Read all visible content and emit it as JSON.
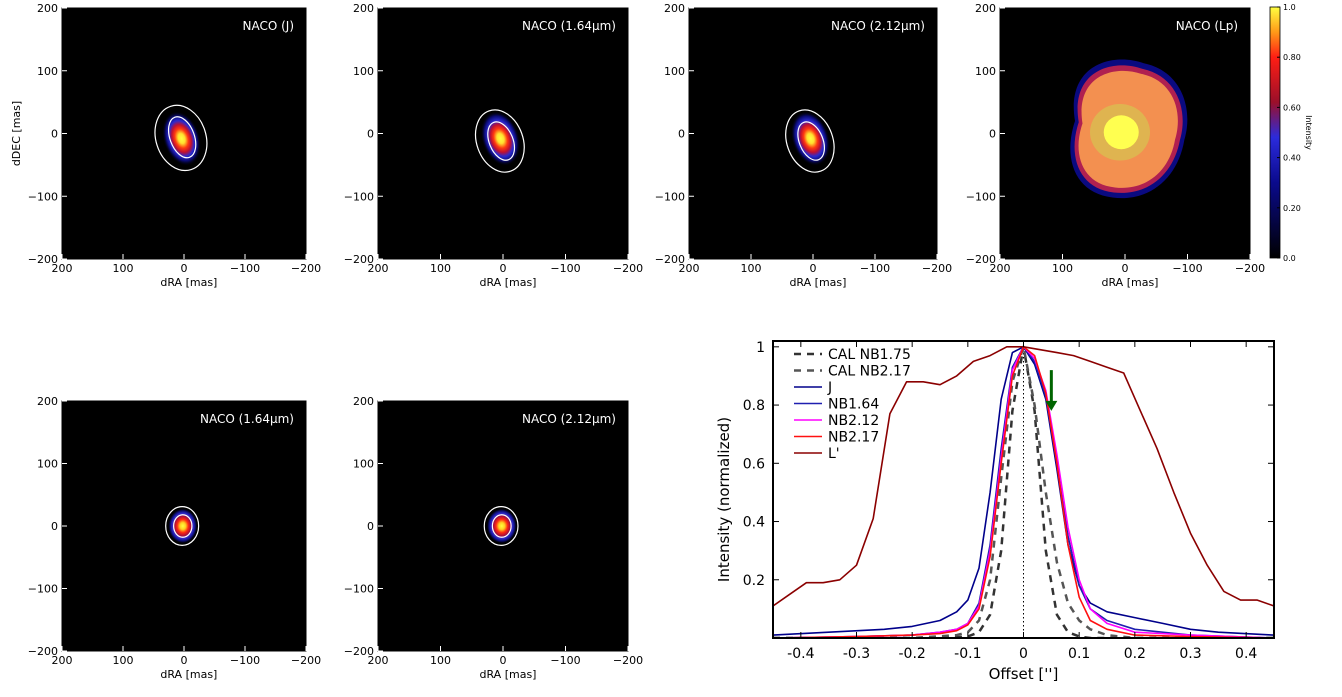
{
  "colorbar": {
    "label": "Intensity",
    "ticks": [
      "1.0",
      "0.80",
      "0.60",
      "0.40",
      "0.20",
      "0.0"
    ],
    "tick_values": [
      1.0,
      0.8,
      0.6,
      0.4,
      0.2,
      0.0
    ]
  },
  "image_panels": [
    {
      "title": "NACO (J)",
      "show_ylabel": true,
      "show_xlabel": true,
      "kind": "core",
      "contours": [
        {
          "rx": 41,
          "ry": 53,
          "cx": 5,
          "cy": -7,
          "rot": -18
        },
        {
          "rx": 20,
          "ry": 34,
          "cx": 3,
          "cy": -6,
          "rot": -20
        }
      ]
    },
    {
      "title": "NACO (1.64μm)",
      "show_ylabel": false,
      "show_xlabel": true,
      "kind": "core",
      "contours": [
        {
          "rx": 37,
          "ry": 51,
          "cx": 5,
          "cy": -12,
          "rot": -20
        },
        {
          "rx": 19,
          "ry": 32,
          "cx": 3,
          "cy": -12,
          "rot": -22
        }
      ]
    },
    {
      "title": "NACO (2.12μm)",
      "show_ylabel": false,
      "show_xlabel": true,
      "kind": "core",
      "contours": [
        {
          "rx": 37,
          "ry": 51,
          "cx": 5,
          "cy": -12,
          "rot": -20
        },
        {
          "rx": 19,
          "ry": 32,
          "cx": 3,
          "cy": -12,
          "rot": -22
        }
      ]
    },
    {
      "title": "NACO (Lp)",
      "show_ylabel": false,
      "show_xlabel": true,
      "kind": "extended",
      "contours": []
    },
    {
      "title": "NACO (1.64μm)",
      "show_ylabel": false,
      "show_xlabel": true,
      "kind": "psf",
      "contours": [
        {
          "rx": 27,
          "ry": 31,
          "cx": 3,
          "cy": 0,
          "rot": 0
        },
        {
          "rx": 15,
          "ry": 18,
          "cx": 2,
          "cy": 0,
          "rot": 0
        }
      ]
    },
    {
      "title": "NACO (2.12μm)",
      "show_ylabel": false,
      "show_xlabel": true,
      "kind": "psf",
      "contours": [
        {
          "rx": 27,
          "ry": 31,
          "cx": 3,
          "cy": 0,
          "rot": 0
        },
        {
          "rx": 15,
          "ry": 18,
          "cx": 2,
          "cy": 0,
          "rot": 0
        }
      ]
    }
  ],
  "image_axes": {
    "xlabel": "dRA [mas]",
    "ylabel": "dDEC [mas]",
    "xticks": [
      200,
      100,
      0,
      -100,
      -200
    ],
    "yticks": [
      200,
      100,
      0,
      -100,
      -200
    ],
    "xtick_labels": [
      "200",
      "100",
      "0",
      "−100",
      "−200"
    ],
    "ytick_labels": [
      "200",
      "100",
      "0",
      "−100",
      "−200"
    ]
  },
  "chart_data": [
    {
      "type": "heatmap",
      "panels": [
        "NACO (J)",
        "NACO (1.64μm)",
        "NACO (2.12μm)",
        "NACO (Lp)",
        "NACO (1.64μm)",
        "NACO (2.12μm)"
      ],
      "xlabel": "dRA [mas]",
      "ylabel": "dDEC [mas]",
      "xlim": [
        200,
        -200
      ],
      "ylim": [
        -200,
        200
      ],
      "colorbar_label": "Intensity",
      "colorbar_range": [
        0,
        1
      ]
    },
    {
      "type": "line",
      "xlabel": "Offset ['']",
      "ylabel": "Intensity (normalized)",
      "xlim": [
        -0.45,
        0.45
      ],
      "ylim": [
        0.0,
        1.02
      ],
      "xticks": [
        -0.4,
        -0.3,
        -0.2,
        -0.1,
        0,
        0.1,
        0.2,
        0.3,
        0.4
      ],
      "xtick_labels": [
        "-0.4",
        "-0.3",
        "-0.2",
        "-0.1",
        "0",
        "0.1",
        "0.2",
        "0.3",
        "0.4"
      ],
      "yticks": [
        0.2,
        0.4,
        0.6,
        0.8,
        1
      ],
      "ytick_labels": [
        "0.2",
        "0.4",
        "0.6",
        "0.8",
        "1"
      ],
      "legend_position": "top-left",
      "vline_x": 0,
      "arrow": {
        "x": 0.05,
        "y_start": 0.92,
        "y_end": 0.78,
        "color": "#006400"
      },
      "series": [
        {
          "name": "CAL NB1.75",
          "color": "#333333",
          "dash": "7,6",
          "width": 2.5,
          "x": [
            -0.45,
            -0.15,
            -0.1,
            -0.08,
            -0.06,
            -0.04,
            -0.02,
            0,
            0.02,
            0.04,
            0.06,
            0.08,
            0.1,
            0.12,
            0.15,
            0.45
          ],
          "y": [
            0.0,
            0.0,
            0.005,
            0.02,
            0.08,
            0.3,
            0.78,
            1.0,
            0.78,
            0.3,
            0.08,
            0.02,
            0.005,
            0.0,
            0.0,
            0.0
          ]
        },
        {
          "name": "CAL NB2.17",
          "color": "#555555",
          "dash": "7,6",
          "width": 2.5,
          "x": [
            -0.45,
            -0.2,
            -0.12,
            -0.1,
            -0.08,
            -0.06,
            -0.04,
            -0.02,
            0,
            0.02,
            0.04,
            0.06,
            0.08,
            0.1,
            0.12,
            0.15,
            0.2,
            0.45
          ],
          "y": [
            0.0,
            0.0,
            0.01,
            0.02,
            0.06,
            0.2,
            0.55,
            0.88,
            1.0,
            0.8,
            0.5,
            0.26,
            0.12,
            0.06,
            0.03,
            0.01,
            0.0,
            0.0
          ]
        },
        {
          "name": "J",
          "color": "#00008b",
          "dash": "",
          "width": 1.6,
          "x": [
            -0.45,
            -0.35,
            -0.25,
            -0.2,
            -0.15,
            -0.12,
            -0.1,
            -0.08,
            -0.06,
            -0.04,
            -0.02,
            0,
            0.02,
            0.04,
            0.06,
            0.08,
            0.1,
            0.12,
            0.15,
            0.2,
            0.25,
            0.3,
            0.35,
            0.45
          ],
          "y": [
            0.01,
            0.02,
            0.03,
            0.04,
            0.06,
            0.09,
            0.13,
            0.24,
            0.5,
            0.82,
            0.98,
            1.0,
            0.94,
            0.82,
            0.58,
            0.32,
            0.18,
            0.12,
            0.09,
            0.07,
            0.05,
            0.03,
            0.02,
            0.01
          ]
        },
        {
          "name": "NB1.64",
          "color": "#1f1fb0",
          "dash": "",
          "width": 1.6,
          "x": [
            -0.45,
            -0.3,
            -0.2,
            -0.15,
            -0.12,
            -0.1,
            -0.08,
            -0.06,
            -0.04,
            -0.02,
            0,
            0.02,
            0.04,
            0.06,
            0.08,
            0.1,
            0.12,
            0.15,
            0.2,
            0.3,
            0.45
          ],
          "y": [
            0.0,
            0.005,
            0.01,
            0.02,
            0.03,
            0.05,
            0.12,
            0.32,
            0.65,
            0.93,
            1.0,
            0.95,
            0.83,
            0.6,
            0.35,
            0.18,
            0.1,
            0.06,
            0.03,
            0.01,
            0.0
          ]
        },
        {
          "name": "NB2.12",
          "color": "#ff00ff",
          "dash": "",
          "width": 1.6,
          "x": [
            -0.45,
            -0.3,
            -0.2,
            -0.15,
            -0.12,
            -0.1,
            -0.08,
            -0.06,
            -0.04,
            -0.02,
            0,
            0.02,
            0.04,
            0.06,
            0.08,
            0.1,
            0.12,
            0.15,
            0.2,
            0.3,
            0.45
          ],
          "y": [
            0.0,
            0.005,
            0.01,
            0.02,
            0.03,
            0.05,
            0.11,
            0.3,
            0.62,
            0.92,
            1.0,
            0.96,
            0.85,
            0.63,
            0.38,
            0.2,
            0.1,
            0.05,
            0.02,
            0.01,
            0.0
          ]
        },
        {
          "name": "NB2.17",
          "color": "#ff1010",
          "dash": "",
          "width": 1.6,
          "x": [
            -0.45,
            -0.3,
            -0.2,
            -0.15,
            -0.12,
            -0.1,
            -0.08,
            -0.06,
            -0.04,
            -0.02,
            0,
            0.02,
            0.04,
            0.06,
            0.08,
            0.1,
            0.12,
            0.15,
            0.2,
            0.3,
            0.45
          ],
          "y": [
            0.0,
            0.005,
            0.01,
            0.015,
            0.025,
            0.045,
            0.1,
            0.28,
            0.6,
            0.9,
            1.0,
            0.97,
            0.84,
            0.6,
            0.32,
            0.14,
            0.06,
            0.03,
            0.01,
            0.005,
            0.0
          ]
        },
        {
          "name": "L'",
          "color": "#8b0000",
          "dash": "",
          "width": 1.6,
          "x": [
            -0.45,
            -0.42,
            -0.39,
            -0.36,
            -0.33,
            -0.3,
            -0.27,
            -0.24,
            -0.21,
            -0.18,
            -0.15,
            -0.12,
            -0.09,
            -0.06,
            -0.03,
            0,
            0.03,
            0.06,
            0.09,
            0.12,
            0.15,
            0.18,
            0.21,
            0.24,
            0.27,
            0.3,
            0.33,
            0.36,
            0.39,
            0.42,
            0.45
          ],
          "y": [
            0.11,
            0.15,
            0.19,
            0.19,
            0.2,
            0.25,
            0.41,
            0.77,
            0.88,
            0.88,
            0.87,
            0.9,
            0.95,
            0.97,
            1.0,
            1.0,
            0.99,
            0.98,
            0.97,
            0.95,
            0.93,
            0.91,
            0.78,
            0.65,
            0.5,
            0.36,
            0.25,
            0.16,
            0.13,
            0.13,
            0.11
          ]
        }
      ]
    }
  ]
}
